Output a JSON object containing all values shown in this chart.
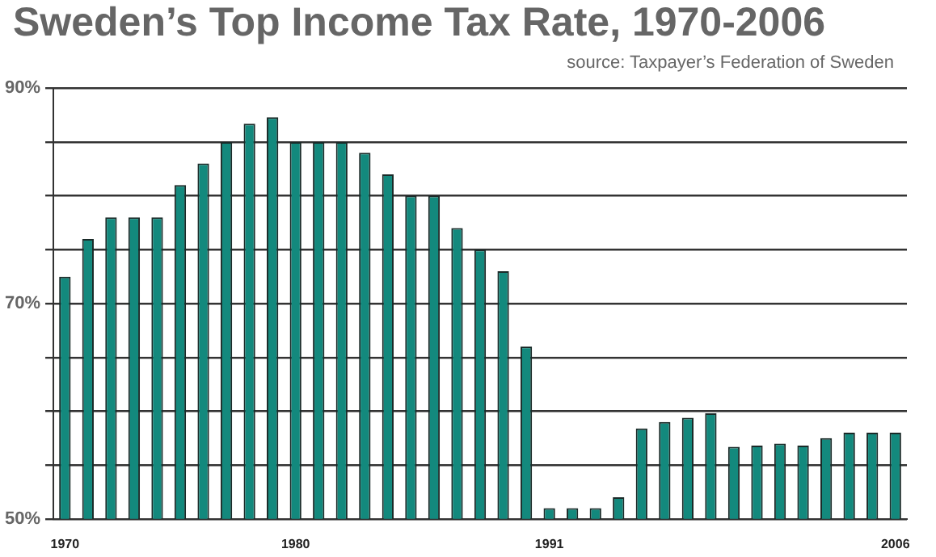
{
  "chart_data": {
    "type": "bar",
    "title": "Sweden’s Top Income Tax Rate, 1970-2006",
    "annotations": [
      "source: Taxpayer’s Federation of Sweden"
    ],
    "categories": [
      "1970",
      null,
      null,
      null,
      null,
      null,
      null,
      null,
      null,
      null,
      "1980",
      null,
      null,
      null,
      null,
      null,
      null,
      null,
      null,
      null,
      null,
      "1991",
      null,
      null,
      null,
      null,
      null,
      null,
      null,
      null,
      null,
      null,
      null,
      null,
      null,
      null,
      "2006"
    ],
    "values": [
      72.5,
      76,
      78,
      78,
      78,
      81,
      83,
      85,
      86.7,
      87.3,
      85,
      85,
      85,
      84,
      82,
      80,
      80,
      77,
      75,
      73,
      66,
      51,
      51,
      51,
      52,
      58.4,
      59,
      59.4,
      59.8,
      56.7,
      56.8,
      57,
      56.8,
      57.5,
      58,
      58,
      58
    ],
    "color": "#13897d",
    "ylim": [
      50,
      90
    ],
    "yticks": [
      {
        "value": 50,
        "label": "50%"
      },
      {
        "value": 55,
        "label": null
      },
      {
        "value": 60,
        "label": null
      },
      {
        "value": 65,
        "label": null
      },
      {
        "value": 70,
        "label": "70%"
      },
      {
        "value": 75,
        "label": null
      },
      {
        "value": 80,
        "label": null
      },
      {
        "value": 85,
        "label": null
      },
      {
        "value": 90,
        "label": "90%"
      }
    ],
    "grid": "y"
  }
}
